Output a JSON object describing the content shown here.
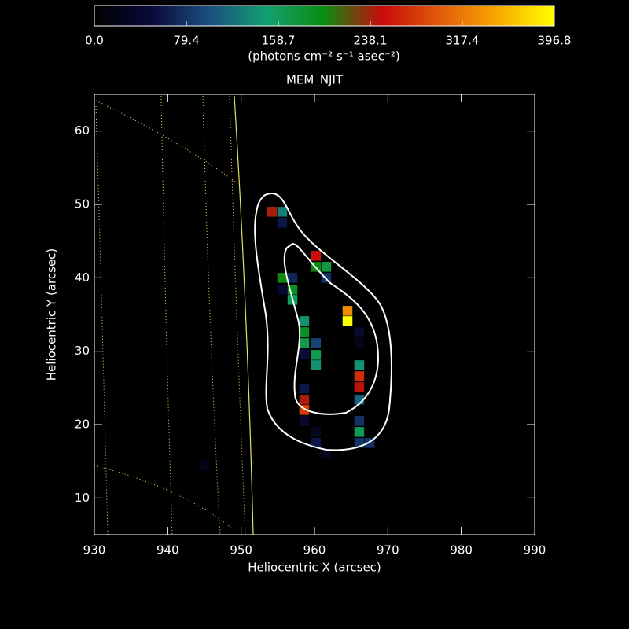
{
  "chart_data": {
    "type": "heatmap",
    "title": "MEM_NJIT",
    "x_label": "Heliocentric X (arcsec)",
    "y_label": "Heliocentric Y (arcsec)",
    "colorbar_label": "(photons cm⁻² s⁻¹ asec⁻²)",
    "colorbar_lim": [
      0,
      396.8
    ],
    "colorbar_ticks": [
      {
        "value": 0,
        "label": "0.0"
      },
      79.4,
      158.7,
      238.1,
      317.4,
      396.8
    ],
    "colormap": [
      "#000000",
      "#0a0a3c",
      "#1a4f80",
      "#12a070",
      "#0a8c10",
      "#c80a0a",
      "#e05a0a",
      "#f8a800",
      "#ffff00"
    ],
    "xlim": [
      930,
      990
    ],
    "ylim": [
      5,
      65
    ],
    "xticks": [
      930,
      940,
      950,
      960,
      970,
      980,
      990
    ],
    "yticks": [
      10,
      20,
      30,
      40,
      50,
      60
    ],
    "x": [
      954.2,
      955.6,
      955.6,
      960.2,
      960.2,
      961.6,
      961.6,
      955.6,
      957.0,
      957.0,
      957.0,
      955.6,
      964.5,
      964.5,
      958.6,
      958.6,
      958.6,
      960.2,
      960.2,
      960.2,
      958.6,
      966.1,
      966.1,
      966.1,
      966.1,
      966.1,
      966.1,
      966.1,
      966.1,
      966.1,
      967.5,
      958.6,
      958.6,
      958.6,
      958.6,
      960.2,
      961.6,
      960.2,
      945.0
    ],
    "y": [
      49.0,
      49.0,
      47.5,
      43.0,
      41.5,
      41.5,
      40.0,
      40.0,
      40.0,
      38.4,
      37.0,
      38.4,
      35.5,
      34.1,
      34.1,
      32.6,
      31.1,
      31.1,
      29.5,
      28.1,
      29.6,
      32.6,
      31.1,
      28.1,
      26.6,
      25.1,
      23.4,
      20.5,
      19.0,
      17.5,
      17.5,
      24.9,
      23.4,
      22.0,
      20.5,
      17.5,
      16.0,
      19.0,
      14.4
    ],
    "values": [
      240,
      130,
      60,
      250,
      200,
      170,
      80,
      200,
      70,
      190,
      160,
      40,
      330,
      396,
      140,
      185,
      165,
      90,
      165,
      140,
      50,
      40,
      20,
      140,
      270,
      245,
      110,
      80,
      165,
      80,
      80,
      60,
      240,
      280,
      40,
      60,
      25,
      25,
      20
    ]
  }
}
